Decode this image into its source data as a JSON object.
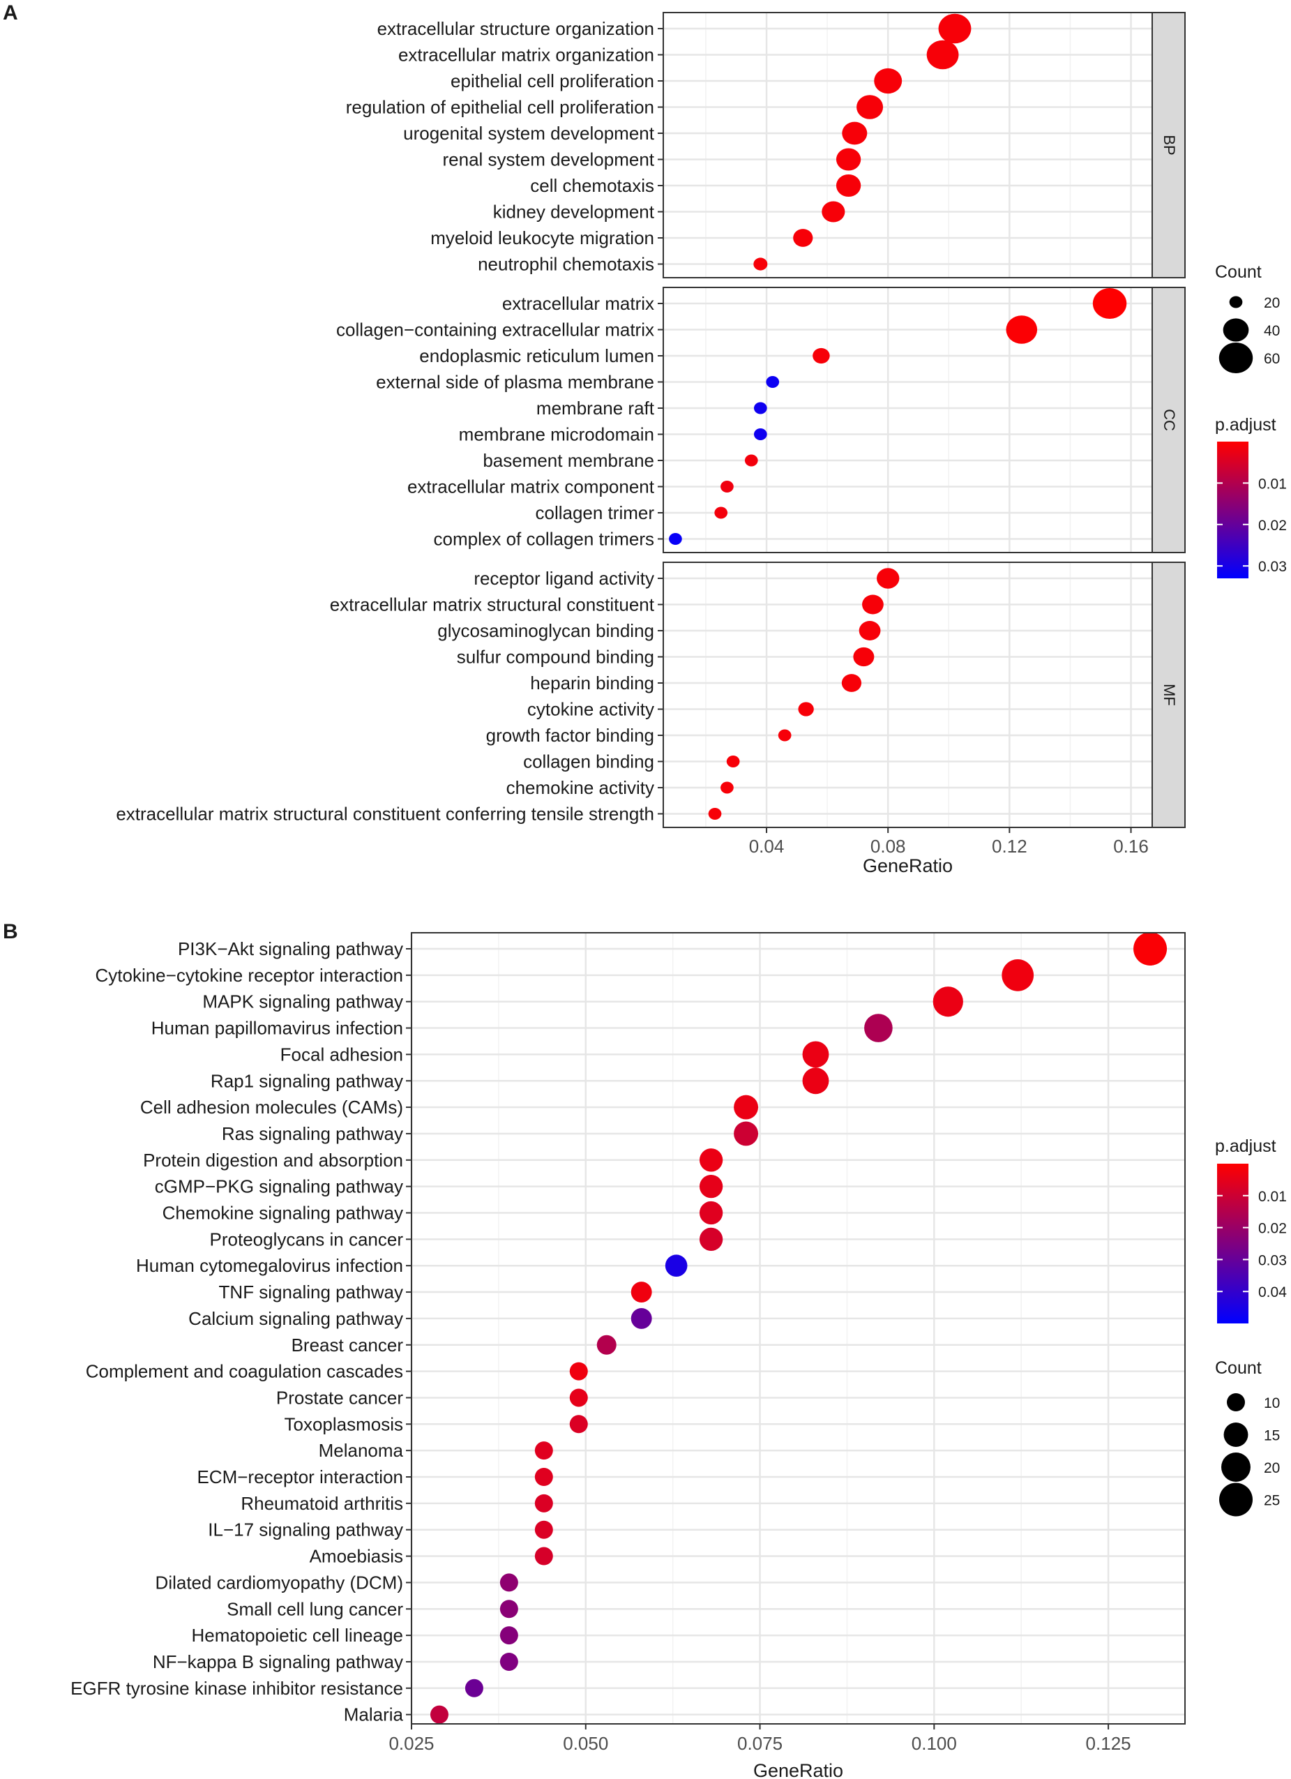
{
  "chart_data": [
    {
      "panel_label": "A",
      "type": "scatter",
      "subtype": "faceted dot plot (GO enrichment)",
      "xlabel": "GeneRatio",
      "xlim": [
        0.006,
        0.167
      ],
      "xticks": [
        0.04,
        0.08,
        0.12,
        0.16
      ],
      "xtick_labels": [
        "0.04",
        "0.08",
        "0.12",
        "0.16"
      ],
      "facets": [
        {
          "name": "BP",
          "terms": [
            {
              "term": "extracellular structure organization",
              "gene_ratio": 0.102,
              "count": 57,
              "p_adjust": 0.001
            },
            {
              "term": "extracellular matrix organization",
              "gene_ratio": 0.098,
              "count": 55,
              "p_adjust": 0.001
            },
            {
              "term": "epithelial cell proliferation",
              "gene_ratio": 0.08,
              "count": 45,
              "p_adjust": 0.001
            },
            {
              "term": "regulation of epithelial cell proliferation",
              "gene_ratio": 0.074,
              "count": 42,
              "p_adjust": 0.001
            },
            {
              "term": "urogenital system development",
              "gene_ratio": 0.069,
              "count": 39,
              "p_adjust": 0.001
            },
            {
              "term": "renal system development",
              "gene_ratio": 0.067,
              "count": 38,
              "p_adjust": 0.001
            },
            {
              "term": "cell chemotaxis",
              "gene_ratio": 0.067,
              "count": 38,
              "p_adjust": 0.001
            },
            {
              "term": "kidney development",
              "gene_ratio": 0.062,
              "count": 35,
              "p_adjust": 0.001
            },
            {
              "term": "myeloid leukocyte migration",
              "gene_ratio": 0.052,
              "count": 29,
              "p_adjust": 0.001
            },
            {
              "term": "neutrophil chemotaxis",
              "gene_ratio": 0.038,
              "count": 21,
              "p_adjust": 0.001
            }
          ]
        },
        {
          "name": "CC",
          "terms": [
            {
              "term": "extracellular matrix",
              "gene_ratio": 0.153,
              "count": 65,
              "p_adjust": 0.0001
            },
            {
              "term": "collagen−containing extracellular matrix",
              "gene_ratio": 0.124,
              "count": 53,
              "p_adjust": 0.0005
            },
            {
              "term": "endoplasmic reticulum lumen",
              "gene_ratio": 0.058,
              "count": 25,
              "p_adjust": 0.001
            },
            {
              "term": "external side of plasma membrane",
              "gene_ratio": 0.042,
              "count": 18,
              "p_adjust": 0.0315
            },
            {
              "term": "membrane raft",
              "gene_ratio": 0.038,
              "count": 16,
              "p_adjust": 0.031
            },
            {
              "term": "membrane microdomain",
              "gene_ratio": 0.038,
              "count": 16,
              "p_adjust": 0.031
            },
            {
              "term": "basement membrane",
              "gene_ratio": 0.035,
              "count": 15,
              "p_adjust": 0.0015
            },
            {
              "term": "extracellular matrix component",
              "gene_ratio": 0.027,
              "count": 12,
              "p_adjust": 0.002
            },
            {
              "term": "collagen trimer",
              "gene_ratio": 0.025,
              "count": 11,
              "p_adjust": 0.0015
            },
            {
              "term": "complex of collagen trimers",
              "gene_ratio": 0.01,
              "count": 5,
              "p_adjust": 0.032
            }
          ]
        },
        {
          "name": "MF",
          "terms": [
            {
              "term": "receptor ligand activity",
              "gene_ratio": 0.08,
              "count": 34,
              "p_adjust": 0.001
            },
            {
              "term": "extracellular matrix structural constituent",
              "gene_ratio": 0.075,
              "count": 32,
              "p_adjust": 0.001
            },
            {
              "term": "glycosaminoglycan binding",
              "gene_ratio": 0.074,
              "count": 32,
              "p_adjust": 0.001
            },
            {
              "term": "sulfur compound binding",
              "gene_ratio": 0.072,
              "count": 31,
              "p_adjust": 0.001
            },
            {
              "term": "heparin binding",
              "gene_ratio": 0.068,
              "count": 29,
              "p_adjust": 0.001
            },
            {
              "term": "cytokine activity",
              "gene_ratio": 0.053,
              "count": 23,
              "p_adjust": 0.001
            },
            {
              "term": "growth factor binding",
              "gene_ratio": 0.046,
              "count": 20,
              "p_adjust": 0.001
            },
            {
              "term": "collagen binding",
              "gene_ratio": 0.029,
              "count": 13,
              "p_adjust": 0.001
            },
            {
              "term": "chemokine activity",
              "gene_ratio": 0.027,
              "count": 12,
              "p_adjust": 0.001
            },
            {
              "term": "extracellular matrix structural constituent conferring tensile strength",
              "gene_ratio": 0.023,
              "count": 10,
              "p_adjust": 0.001
            }
          ]
        }
      ],
      "legend_size": {
        "title": "Count",
        "values": [
          20,
          40,
          60
        ],
        "labels": [
          "20",
          "40",
          "60"
        ]
      },
      "legend_color": {
        "title": "p.adjust",
        "low": 0.0,
        "high": 0.033,
        "low_color": "#ff0000",
        "high_color": "#0000ff",
        "ticks": [
          0.01,
          0.02,
          0.03
        ],
        "tick_labels": [
          "0.01",
          "0.02",
          "0.03"
        ]
      }
    },
    {
      "panel_label": "B",
      "type": "scatter",
      "subtype": "dot plot (KEGG enrichment)",
      "xlabel": "GeneRatio",
      "xlim": [
        0.025,
        0.136
      ],
      "xticks": [
        0.025,
        0.05,
        0.075,
        0.1,
        0.125
      ],
      "xtick_labels": [
        "0.025",
        "0.050",
        "0.075",
        "0.100",
        "0.125"
      ],
      "terms": [
        {
          "term": "PI3K−Akt signaling pathway",
          "gene_ratio": 0.131,
          "count": 27,
          "p_adjust": 0.001
        },
        {
          "term": "Cytokine−cytokine receptor interaction",
          "gene_ratio": 0.112,
          "count": 23,
          "p_adjust": 0.003
        },
        {
          "term": "MAPK signaling pathway",
          "gene_ratio": 0.102,
          "count": 21,
          "p_adjust": 0.004
        },
        {
          "term": "Human papillomavirus infection",
          "gene_ratio": 0.092,
          "count": 19,
          "p_adjust": 0.016
        },
        {
          "term": "Focal adhesion",
          "gene_ratio": 0.083,
          "count": 17,
          "p_adjust": 0.004
        },
        {
          "term": "Rap1 signaling pathway",
          "gene_ratio": 0.083,
          "count": 17,
          "p_adjust": 0.004
        },
        {
          "term": "Cell adhesion molecules (CAMs)",
          "gene_ratio": 0.073,
          "count": 15,
          "p_adjust": 0.004
        },
        {
          "term": "Ras signaling pathway",
          "gene_ratio": 0.073,
          "count": 15,
          "p_adjust": 0.01
        },
        {
          "term": "Protein digestion and absorption",
          "gene_ratio": 0.068,
          "count": 14,
          "p_adjust": 0.004
        },
        {
          "term": "cGMP−PKG signaling pathway",
          "gene_ratio": 0.068,
          "count": 14,
          "p_adjust": 0.005
        },
        {
          "term": "Chemokine signaling pathway",
          "gene_ratio": 0.068,
          "count": 14,
          "p_adjust": 0.006
        },
        {
          "term": "Proteoglycans in cancer",
          "gene_ratio": 0.068,
          "count": 14,
          "p_adjust": 0.008
        },
        {
          "term": "Human cytomegalovirus infection",
          "gene_ratio": 0.063,
          "count": 13,
          "p_adjust": 0.045
        },
        {
          "term": "TNF signaling pathway",
          "gene_ratio": 0.058,
          "count": 12,
          "p_adjust": 0.003
        },
        {
          "term": "Calcium signaling pathway",
          "gene_ratio": 0.058,
          "count": 12,
          "p_adjust": 0.03
        },
        {
          "term": "Breast cancer",
          "gene_ratio": 0.053,
          "count": 11,
          "p_adjust": 0.015
        },
        {
          "term": "Complement and coagulation cascades",
          "gene_ratio": 0.049,
          "count": 10,
          "p_adjust": 0.003
        },
        {
          "term": "Prostate cancer",
          "gene_ratio": 0.049,
          "count": 10,
          "p_adjust": 0.005
        },
        {
          "term": "Toxoplasmosis",
          "gene_ratio": 0.049,
          "count": 10,
          "p_adjust": 0.007
        },
        {
          "term": "Melanoma",
          "gene_ratio": 0.044,
          "count": 9,
          "p_adjust": 0.006
        },
        {
          "term": "ECM−receptor interaction",
          "gene_ratio": 0.044,
          "count": 9,
          "p_adjust": 0.006
        },
        {
          "term": "Rheumatoid arthritis",
          "gene_ratio": 0.044,
          "count": 9,
          "p_adjust": 0.007
        },
        {
          "term": "IL−17 signaling pathway",
          "gene_ratio": 0.044,
          "count": 9,
          "p_adjust": 0.007
        },
        {
          "term": "Amoebiasis",
          "gene_ratio": 0.044,
          "count": 9,
          "p_adjust": 0.008
        },
        {
          "term": "Dilated cardiomyopathy (DCM)",
          "gene_ratio": 0.039,
          "count": 8,
          "p_adjust": 0.022
        },
        {
          "term": "Small cell lung cancer",
          "gene_ratio": 0.039,
          "count": 8,
          "p_adjust": 0.023
        },
        {
          "term": "Hematopoietic cell lineage",
          "gene_ratio": 0.039,
          "count": 8,
          "p_adjust": 0.024
        },
        {
          "term": "NF−kappa B signaling pathway",
          "gene_ratio": 0.039,
          "count": 8,
          "p_adjust": 0.025
        },
        {
          "term": "EGFR tyrosine kinase inhibitor resistance",
          "gene_ratio": 0.034,
          "count": 7,
          "p_adjust": 0.029
        },
        {
          "term": "Malaria",
          "gene_ratio": 0.029,
          "count": 6,
          "p_adjust": 0.012
        }
      ],
      "legend_size": {
        "title": "Count",
        "values": [
          10,
          15,
          20,
          25
        ],
        "labels": [
          "10",
          "15",
          "20",
          "25"
        ]
      },
      "legend_color": {
        "title": "p.adjust",
        "low": 0.0,
        "high": 0.05,
        "low_color": "#ff0000",
        "high_color": "#0000ff",
        "ticks": [
          0.01,
          0.02,
          0.03,
          0.04
        ],
        "tick_labels": [
          "0.01",
          "0.02",
          "0.03",
          "0.04"
        ]
      }
    }
  ]
}
